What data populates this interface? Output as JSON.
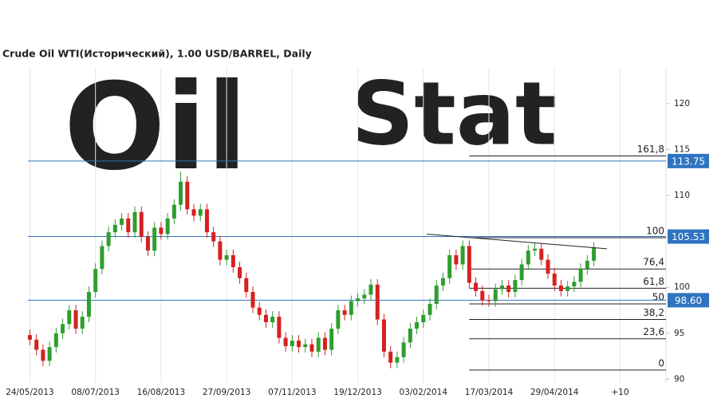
{
  "chart_data": {
    "type": "candlestick",
    "title": "Crude Oil WTI(Исторический), 1.00 USD/BARREL, Daily",
    "watermark": [
      "Oil",
      "Stat"
    ],
    "up_color": "#2e9e2e",
    "down_color": "#d62020",
    "open": [
      94.8,
      94.3,
      93.2,
      92.0,
      93.5,
      95.0,
      96.0,
      97.5,
      95.5,
      96.8,
      99.5,
      102.0,
      104.5,
      106.0,
      106.8,
      107.5,
      106.0,
      108.2,
      105.5,
      104.0,
      106.5,
      105.8,
      107.5,
      109.0,
      111.5,
      108.5,
      107.8,
      108.5,
      106.0,
      105.0,
      103.0,
      103.5,
      102.2,
      101.0,
      99.5,
      97.8,
      97.0,
      96.2,
      96.8,
      94.5,
      93.6,
      94.2,
      93.5,
      93.8,
      93.0,
      94.5,
      93.2,
      95.5,
      97.5,
      97.0,
      98.5,
      98.8,
      99.2,
      100.3,
      96.5,
      93.0,
      91.8,
      92.4,
      94.0,
      95.5,
      96.2,
      97.0,
      98.2,
      100.2,
      101.0,
      103.5,
      102.5,
      104.5,
      100.5,
      99.6,
      98.6,
      98.5,
      99.8,
      100.2,
      99.5,
      100.8,
      102.5,
      104.0,
      104.2,
      103.0,
      101.5,
      100.2,
      99.6,
      100.1,
      100.6,
      102.0,
      102.9
    ],
    "high": [
      95.4,
      94.9,
      93.8,
      94.1,
      95.6,
      96.6,
      98.1,
      98.1,
      97.4,
      100.1,
      102.6,
      105.1,
      106.6,
      107.4,
      108.1,
      108.1,
      108.8,
      108.8,
      106.1,
      107.1,
      107.1,
      108.1,
      109.6,
      112.6,
      112.1,
      109.1,
      109.1,
      109.1,
      106.6,
      105.6,
      104.1,
      104.1,
      102.8,
      101.6,
      100.1,
      98.4,
      97.6,
      97.4,
      97.4,
      95.1,
      94.8,
      94.8,
      94.4,
      94.4,
      95.1,
      95.1,
      96.1,
      98.1,
      98.1,
      99.1,
      99.4,
      99.8,
      100.9,
      100.9,
      97.1,
      93.6,
      93.0,
      94.6,
      96.1,
      96.8,
      97.6,
      98.8,
      100.8,
      101.6,
      104.1,
      104.1,
      105.1,
      105.1,
      101.1,
      100.2,
      99.2,
      100.4,
      100.8,
      100.8,
      101.4,
      103.1,
      104.6,
      104.8,
      104.8,
      103.6,
      102.1,
      100.8,
      100.7,
      101.2,
      102.6,
      103.5,
      104.9
    ],
    "low": [
      93.7,
      92.6,
      91.4,
      91.4,
      92.9,
      94.4,
      95.4,
      94.9,
      94.9,
      96.2,
      98.9,
      101.4,
      103.9,
      105.4,
      106.2,
      105.4,
      105.4,
      104.9,
      103.4,
      103.4,
      105.2,
      105.2,
      106.9,
      108.4,
      107.9,
      107.2,
      107.2,
      105.4,
      104.4,
      102.4,
      102.4,
      101.6,
      100.4,
      98.9,
      97.2,
      96.4,
      95.6,
      95.6,
      93.9,
      93.0,
      93.0,
      92.9,
      92.9,
      92.4,
      92.4,
      92.6,
      92.6,
      94.9,
      96.4,
      96.4,
      97.9,
      98.2,
      98.6,
      95.9,
      92.4,
      91.2,
      91.2,
      91.8,
      93.4,
      94.9,
      95.6,
      96.4,
      97.6,
      99.6,
      100.4,
      101.9,
      101.9,
      99.9,
      99.0,
      98.0,
      97.9,
      97.9,
      99.2,
      98.9,
      98.9,
      100.2,
      101.9,
      103.4,
      102.4,
      100.9,
      99.6,
      99.0,
      99.0,
      99.5,
      100.0,
      101.4,
      102.3
    ],
    "close": [
      94.3,
      93.2,
      92.0,
      93.5,
      95.0,
      96.0,
      97.5,
      95.5,
      96.8,
      99.5,
      102.0,
      104.5,
      106.0,
      106.8,
      107.5,
      106.0,
      108.2,
      105.5,
      104.0,
      106.5,
      105.8,
      107.5,
      109.0,
      111.5,
      108.5,
      107.8,
      108.5,
      106.0,
      105.0,
      103.0,
      103.5,
      102.2,
      101.0,
      99.5,
      97.8,
      97.0,
      96.2,
      96.8,
      94.5,
      93.6,
      94.2,
      93.5,
      93.8,
      93.0,
      94.5,
      93.2,
      95.5,
      97.5,
      97.0,
      98.5,
      98.8,
      99.2,
      100.3,
      96.5,
      93.0,
      91.8,
      92.4,
      94.0,
      95.5,
      96.2,
      97.0,
      98.2,
      100.2,
      101.0,
      103.5,
      102.5,
      104.5,
      100.5,
      99.6,
      98.6,
      98.5,
      99.8,
      100.2,
      99.5,
      100.8,
      102.5,
      104.0,
      104.2,
      103.0,
      101.5,
      100.2,
      99.6,
      100.1,
      100.6,
      102.0,
      102.9,
      104.3
    ],
    "xlim": [
      -0.3,
      97
    ],
    "xticks": [
      {
        "value": 0,
        "label": "24/05/2013"
      },
      {
        "value": 10,
        "label": "08/07/2013"
      },
      {
        "value": 20,
        "label": "16/08/2013"
      },
      {
        "value": 30,
        "label": "27/09/2013"
      },
      {
        "value": 40,
        "label": "07/11/2013"
      },
      {
        "value": 50,
        "label": "19/12/2013"
      },
      {
        "value": 60,
        "label": "03/02/2014"
      },
      {
        "value": 70,
        "label": "17/03/2014"
      },
      {
        "value": 80,
        "label": "29/04/2014"
      },
      {
        "value": 90,
        "label": "+10"
      }
    ],
    "ylim": [
      89.6,
      123.9
    ],
    "yticks": [
      90,
      95,
      100,
      110,
      115,
      120
    ],
    "levels": [
      {
        "value": 113.75,
        "label": "113.75"
      },
      {
        "value": 105.53,
        "label": "105.53"
      },
      {
        "value": 98.6,
        "label": "98.60"
      }
    ],
    "level_color": "#2f74c0",
    "fibonacci": {
      "start": 67,
      "levels": [
        {
          "value": 114.3,
          "label": "161,8"
        },
        {
          "value": 105.4,
          "label": "100"
        },
        {
          "value": 102.0,
          "label": "76,4"
        },
        {
          "value": 99.9,
          "label": "61,8"
        },
        {
          "value": 98.2,
          "label": "50"
        },
        {
          "value": 96.5,
          "label": "38,2"
        },
        {
          "value": 94.4,
          "label": "23,6"
        },
        {
          "value": 91.0,
          "label": "0"
        }
      ]
    },
    "trendline": {
      "x": [
        60.5,
        88
      ],
      "y": [
        105.8,
        104.2
      ]
    }
  }
}
